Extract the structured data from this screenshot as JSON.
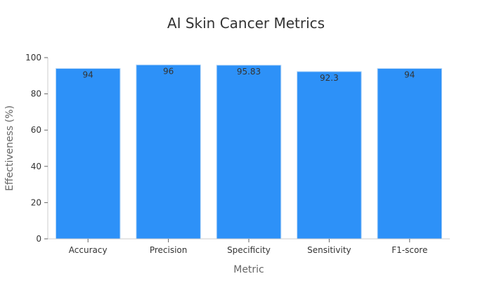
{
  "chart_data": {
    "type": "bar",
    "title": "AI Skin Cancer Metrics",
    "xlabel": "Metric",
    "ylabel": "Effectiveness (%)",
    "categories": [
      "Accuracy",
      "Precision",
      "Specificity",
      "Sensitivity",
      "F1-score"
    ],
    "values": [
      94,
      96,
      95.83,
      92.3,
      94
    ],
    "data_labels": [
      "94",
      "96",
      "95.83",
      "92.3",
      "94"
    ],
    "ylim": [
      0,
      100
    ],
    "yticks": [
      0,
      20,
      40,
      60,
      80,
      100
    ],
    "grid": false,
    "legend": "none",
    "colors": {
      "bar": "#2d91f8",
      "bar_edge": "#b9d8f7"
    }
  }
}
